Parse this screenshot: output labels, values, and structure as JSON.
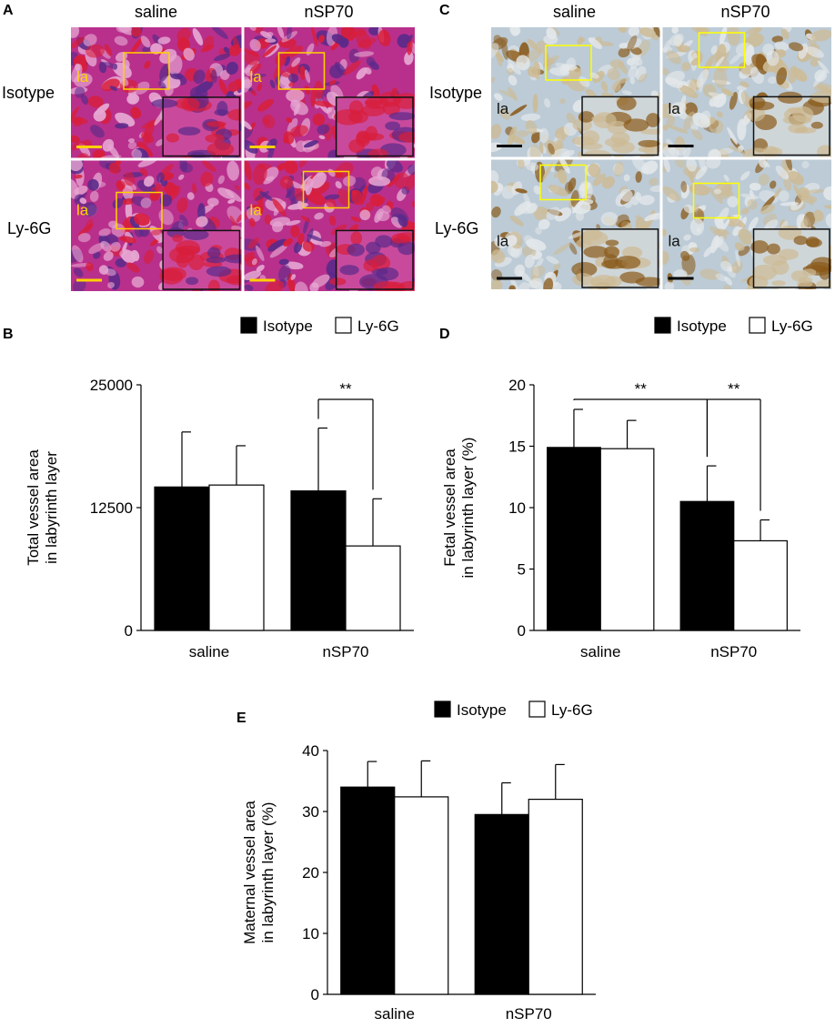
{
  "figure": {
    "panels": {
      "A": {
        "letter": "A",
        "col_labels": [
          "saline",
          "nSP70"
        ],
        "row_labels": [
          "Isotype",
          "Ly-6G"
        ],
        "region_label": "la",
        "stain_colors": {
          "base": "#b8308c",
          "dark": "#5a2a8a",
          "red": "#d81e3a"
        },
        "scale_bar_color": "#ffd200",
        "box_color": "#ffd200"
      },
      "C": {
        "letter": "C",
        "col_labels": [
          "saline",
          "nSP70"
        ],
        "row_labels": [
          "Isotype",
          "Ly-6G"
        ],
        "region_label": "la",
        "stain_colors": {
          "base": "#bccbd6",
          "tissue": "#cdbb95",
          "brown": "#8a5a1a"
        },
        "scale_bar_color": "#000000",
        "box_color": "#ffff00"
      },
      "B": {
        "letter": "B"
      },
      "D": {
        "letter": "D"
      },
      "E": {
        "letter": "E"
      }
    }
  },
  "chart_data": [
    {
      "id": "B",
      "type": "bar",
      "categories": [
        "saline",
        "nSP70"
      ],
      "series": [
        {
          "name": "Isotype",
          "values": [
            14600,
            14200
          ],
          "errors": [
            5600,
            6400
          ],
          "color": "#000000"
        },
        {
          "name": "Ly-6G",
          "values": [
            14800,
            8600
          ],
          "errors": [
            4000,
            4800
          ],
          "color": "#ffffff"
        }
      ],
      "ylabel": "Total vessel area in labyrinth layer",
      "ylim": [
        0,
        25000
      ],
      "yticks": [
        0,
        12500,
        25000
      ],
      "significance": [
        {
          "text": "**",
          "from": [
            1,
            0
          ],
          "to": [
            1,
            1
          ]
        }
      ],
      "legend": "top-right",
      "grid": false
    },
    {
      "id": "D",
      "type": "bar",
      "categories": [
        "saline",
        "nSP70"
      ],
      "series": [
        {
          "name": "Isotype",
          "values": [
            14.9,
            10.5
          ],
          "errors": [
            3.1,
            2.9
          ],
          "color": "#000000"
        },
        {
          "name": "Ly-6G",
          "values": [
            14.8,
            7.3
          ],
          "errors": [
            2.3,
            1.7
          ],
          "color": "#ffffff"
        }
      ],
      "ylabel": "Fetal vessel area in labyrinth layer (%)",
      "ylim": [
        0,
        20
      ],
      "yticks": [
        0,
        5,
        10,
        15,
        20
      ],
      "significance": [
        {
          "text": "**",
          "from": [
            0,
            0
          ],
          "to": [
            1,
            0
          ]
        },
        {
          "text": "**",
          "from": [
            1,
            0
          ],
          "to": [
            1,
            1
          ]
        }
      ],
      "legend": "top-right",
      "grid": false
    },
    {
      "id": "E",
      "type": "bar",
      "categories": [
        "saline",
        "nSP70"
      ],
      "series": [
        {
          "name": "Isotype",
          "values": [
            34.0,
            29.5
          ],
          "errors": [
            4.2,
            5.2
          ],
          "color": "#000000"
        },
        {
          "name": "Ly-6G",
          "values": [
            32.4,
            32.0
          ],
          "errors": [
            5.9,
            5.7
          ],
          "color": "#ffffff"
        }
      ],
      "ylabel": "Maternal vessel area in labyrinth layer (%)",
      "ylim": [
        0,
        40
      ],
      "yticks": [
        0,
        10,
        20,
        30,
        40
      ],
      "significance": [],
      "legend": "top",
      "grid": false
    }
  ]
}
